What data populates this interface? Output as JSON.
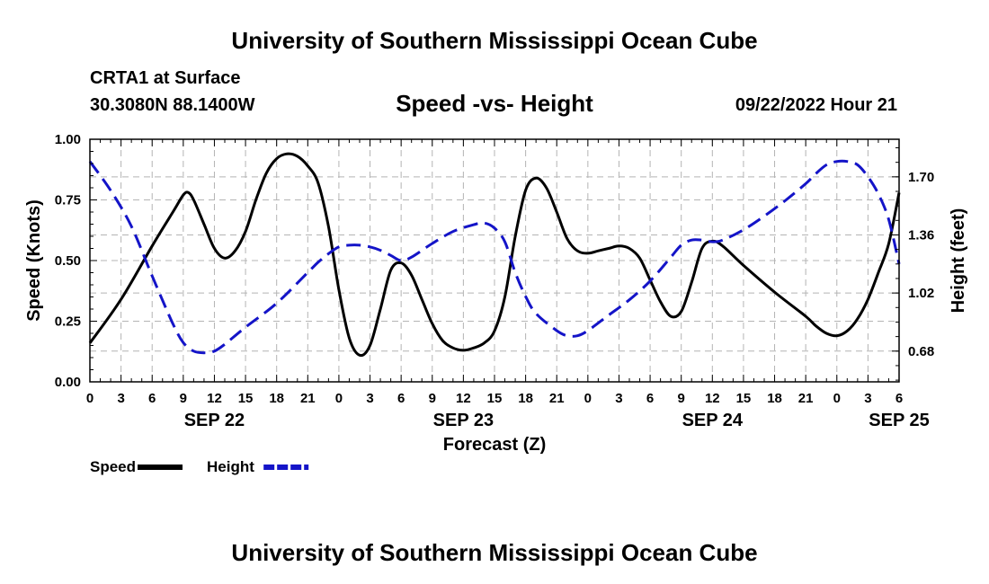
{
  "header": {
    "title_top": "University of Southern Mississippi Ocean Cube",
    "station": "CRTA1 at Surface",
    "coords": "30.3080N  88.1400W",
    "subtitle": "Speed -vs- Height",
    "date_hour": "09/22/2022 Hour 21",
    "title_bottom": "University of Southern Mississippi Ocean Cube"
  },
  "chart_data": {
    "type": "line",
    "title": "Speed -vs- Height",
    "xlabel": "Forecast (Z)",
    "ylabel": "Speed (Knots)",
    "y2label": "Height (feet)",
    "x_range_hours": [
      0,
      78
    ],
    "ylim": [
      0,
      1
    ],
    "y2lim": [
      0.5,
      1.92
    ],
    "grid": true,
    "x_ticks": [
      {
        "h": 0,
        "label": "0"
      },
      {
        "h": 3,
        "label": "3"
      },
      {
        "h": 6,
        "label": "6"
      },
      {
        "h": 9,
        "label": "9"
      },
      {
        "h": 12,
        "label": "12"
      },
      {
        "h": 15,
        "label": "15"
      },
      {
        "h": 18,
        "label": "18"
      },
      {
        "h": 21,
        "label": "21"
      },
      {
        "h": 24,
        "label": "0"
      },
      {
        "h": 27,
        "label": "3"
      },
      {
        "h": 30,
        "label": "6"
      },
      {
        "h": 33,
        "label": "9"
      },
      {
        "h": 36,
        "label": "12"
      },
      {
        "h": 39,
        "label": "15"
      },
      {
        "h": 42,
        "label": "18"
      },
      {
        "h": 45,
        "label": "21"
      },
      {
        "h": 48,
        "label": "0"
      },
      {
        "h": 51,
        "label": "3"
      },
      {
        "h": 54,
        "label": "6"
      },
      {
        "h": 57,
        "label": "9"
      },
      {
        "h": 60,
        "label": "12"
      },
      {
        "h": 63,
        "label": "15"
      },
      {
        "h": 66,
        "label": "18"
      },
      {
        "h": 69,
        "label": "21"
      },
      {
        "h": 72,
        "label": "0"
      },
      {
        "h": 75,
        "label": "3"
      },
      {
        "h": 78,
        "label": "6"
      }
    ],
    "day_labels": [
      {
        "h": 12,
        "label": "SEP 22"
      },
      {
        "h": 36,
        "label": "SEP 23"
      },
      {
        "h": 60,
        "label": "SEP 24"
      },
      {
        "h": 78,
        "label": "SEP 25"
      }
    ],
    "y_ticks": [
      {
        "v": 0.0,
        "label": "0.00"
      },
      {
        "v": 0.25,
        "label": "0.25"
      },
      {
        "v": 0.5,
        "label": "0.50"
      },
      {
        "v": 0.75,
        "label": "0.75"
      },
      {
        "v": 1.0,
        "label": "1.00"
      }
    ],
    "y2_ticks": [
      {
        "v": 0.68,
        "label": "0.68"
      },
      {
        "v": 1.02,
        "label": "1.02"
      },
      {
        "v": 1.36,
        "label": "1.36"
      },
      {
        "v": 1.7,
        "label": "1.70"
      }
    ],
    "series": [
      {
        "name": "Speed",
        "axis": "left",
        "color": "#000000",
        "dash": "solid",
        "points": [
          [
            0,
            0.16
          ],
          [
            3,
            0.34
          ],
          [
            6,
            0.56
          ],
          [
            8,
            0.7
          ],
          [
            9,
            0.77
          ],
          [
            9.5,
            0.78
          ],
          [
            10,
            0.75
          ],
          [
            11,
            0.65
          ],
          [
            12,
            0.55
          ],
          [
            13,
            0.51
          ],
          [
            14,
            0.54
          ],
          [
            15,
            0.62
          ],
          [
            16,
            0.75
          ],
          [
            17,
            0.86
          ],
          [
            18,
            0.92
          ],
          [
            19,
            0.94
          ],
          [
            20,
            0.93
          ],
          [
            21,
            0.89
          ],
          [
            22,
            0.82
          ],
          [
            23,
            0.64
          ],
          [
            24,
            0.38
          ],
          [
            25,
            0.18
          ],
          [
            26,
            0.11
          ],
          [
            27,
            0.15
          ],
          [
            28,
            0.3
          ],
          [
            29,
            0.46
          ],
          [
            30,
            0.49
          ],
          [
            31,
            0.44
          ],
          [
            32,
            0.34
          ],
          [
            33,
            0.24
          ],
          [
            34,
            0.17
          ],
          [
            35,
            0.14
          ],
          [
            36,
            0.13
          ],
          [
            37,
            0.14
          ],
          [
            38,
            0.16
          ],
          [
            39,
            0.21
          ],
          [
            40,
            0.35
          ],
          [
            41,
            0.6
          ],
          [
            42,
            0.79
          ],
          [
            43,
            0.84
          ],
          [
            44,
            0.8
          ],
          [
            45,
            0.7
          ],
          [
            46,
            0.59
          ],
          [
            47,
            0.54
          ],
          [
            48,
            0.53
          ],
          [
            49,
            0.54
          ],
          [
            50,
            0.55
          ],
          [
            51,
            0.56
          ],
          [
            52,
            0.55
          ],
          [
            53,
            0.51
          ],
          [
            54,
            0.42
          ],
          [
            55,
            0.33
          ],
          [
            56,
            0.27
          ],
          [
            57,
            0.29
          ],
          [
            58,
            0.41
          ],
          [
            59,
            0.55
          ],
          [
            60,
            0.58
          ],
          [
            61,
            0.56
          ],
          [
            63,
            0.48
          ],
          [
            66,
            0.37
          ],
          [
            69,
            0.27
          ],
          [
            70,
            0.23
          ],
          [
            71,
            0.2
          ],
          [
            72,
            0.19
          ],
          [
            73,
            0.21
          ],
          [
            74,
            0.26
          ],
          [
            75,
            0.34
          ],
          [
            76,
            0.45
          ],
          [
            77,
            0.57
          ],
          [
            78,
            0.78
          ]
        ]
      },
      {
        "name": "Height",
        "axis": "right",
        "color": "#1414c8",
        "dash": "dashed",
        "points": [
          [
            0,
            1.79
          ],
          [
            2,
            1.62
          ],
          [
            4,
            1.41
          ],
          [
            6,
            1.12
          ],
          [
            8,
            0.84
          ],
          [
            9,
            0.73
          ],
          [
            10,
            0.68
          ],
          [
            11,
            0.67
          ],
          [
            12,
            0.68
          ],
          [
            13,
            0.72
          ],
          [
            15,
            0.82
          ],
          [
            18,
            0.96
          ],
          [
            21,
            1.14
          ],
          [
            22,
            1.2
          ],
          [
            23,
            1.25
          ],
          [
            24,
            1.29
          ],
          [
            25,
            1.3
          ],
          [
            26,
            1.3
          ],
          [
            27,
            1.29
          ],
          [
            28,
            1.27
          ],
          [
            29,
            1.24
          ],
          [
            30,
            1.21
          ],
          [
            31,
            1.23
          ],
          [
            33,
            1.31
          ],
          [
            35,
            1.38
          ],
          [
            37,
            1.42
          ],
          [
            38,
            1.43
          ],
          [
            39,
            1.4
          ],
          [
            40,
            1.32
          ],
          [
            41,
            1.14
          ],
          [
            42,
            1.0
          ],
          [
            43,
            0.9
          ],
          [
            45,
            0.8
          ],
          [
            46,
            0.77
          ],
          [
            47,
            0.77
          ],
          [
            48,
            0.8
          ],
          [
            50,
            0.89
          ],
          [
            52,
            0.98
          ],
          [
            54,
            1.09
          ],
          [
            56,
            1.23
          ],
          [
            57,
            1.3
          ],
          [
            58,
            1.33
          ],
          [
            59,
            1.33
          ],
          [
            60,
            1.32
          ],
          [
            61,
            1.33
          ],
          [
            63,
            1.39
          ],
          [
            65,
            1.47
          ],
          [
            67,
            1.56
          ],
          [
            69,
            1.66
          ],
          [
            70,
            1.72
          ],
          [
            71,
            1.77
          ],
          [
            72,
            1.79
          ],
          [
            73,
            1.79
          ],
          [
            74,
            1.77
          ],
          [
            75,
            1.7
          ],
          [
            76,
            1.6
          ],
          [
            77,
            1.45
          ],
          [
            78,
            1.19
          ]
        ]
      }
    ],
    "legend": [
      {
        "label": "Speed",
        "color": "#000000",
        "dash": "solid"
      },
      {
        "label": "Height",
        "color": "#1414c8",
        "dash": "dashed"
      }
    ],
    "legend_position": "bottom-left"
  }
}
